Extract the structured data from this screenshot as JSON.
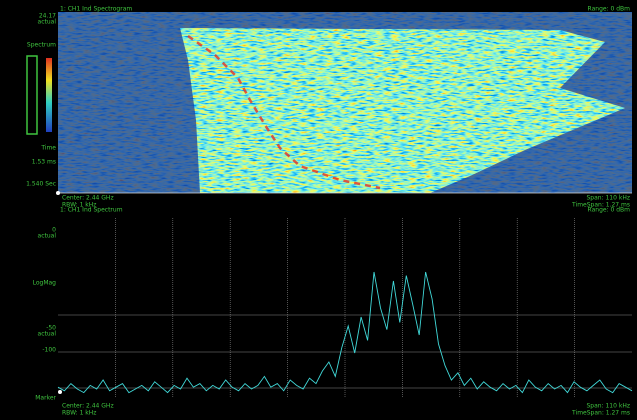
{
  "waterfall": {
    "title": "1: CH1 Ind Spectrogram",
    "range": "Range: 0 dBm",
    "left_labels": [
      "24.17",
      "actual",
      "Spectrum",
      "Time",
      "1.53 ms",
      "1.540 Sec"
    ],
    "status_left": [
      "Center: 2.44 GHz",
      "RBW: 1 kHz"
    ],
    "status_right": [
      "Span: 110 kHz",
      "TimeSpan: 1.27 ms"
    ]
  },
  "spectrum": {
    "title": "1: CH1 Ind Spectrum",
    "range": "Range: 0 dBm",
    "left_labels": [
      "0",
      "actual",
      "LogMag",
      "-50",
      "actual",
      "-100",
      "Marker"
    ],
    "status_left": [
      "Center: 2.44 GHz",
      "RBW: 1 kHz"
    ],
    "status_right": [
      "Span: 110 kHz",
      "TimeSpan: 1.27 ms"
    ],
    "ylim": [
      -100,
      0
    ],
    "values": [
      -94,
      -96,
      -92,
      -95,
      -97,
      -93,
      -95,
      -90,
      -96,
      -94,
      -92,
      -97,
      -95,
      -93,
      -96,
      -91,
      -94,
      -97,
      -93,
      -95,
      -89,
      -94,
      -92,
      -96,
      -93,
      -95,
      -90,
      -94,
      -96,
      -92,
      -95,
      -93,
      -88,
      -94,
      -92,
      -96,
      -90,
      -93,
      -95,
      -89,
      -92,
      -85,
      -80,
      -88,
      -72,
      -60,
      -75,
      -55,
      -68,
      -30,
      -50,
      -62,
      -35,
      -58,
      -32,
      -48,
      -65,
      -30,
      -45,
      -70,
      -82,
      -90,
      -86,
      -93,
      -89,
      -95,
      -91,
      -94,
      -96,
      -92,
      -95,
      -93,
      -97,
      -90,
      -94,
      -96,
      -92,
      -95,
      -93,
      -97,
      -91,
      -94,
      -96,
      -93,
      -90,
      -95,
      -97,
      -92,
      -94,
      -96
    ]
  }
}
